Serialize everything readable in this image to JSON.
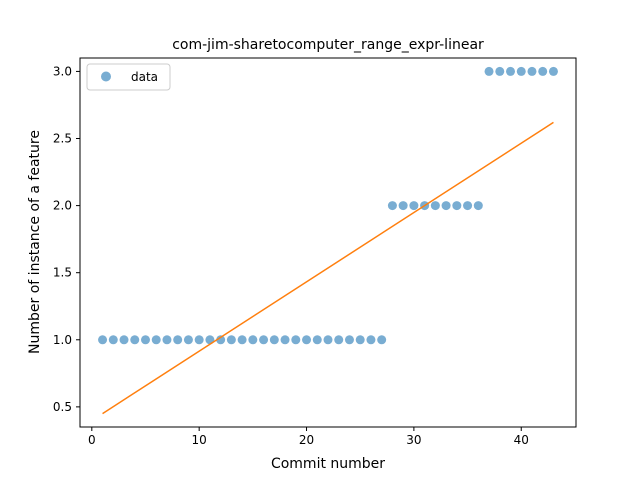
{
  "chart_data": {
    "type": "scatter",
    "title": "com-jim-sharetocomputer_range_expr-linear",
    "xlabel": "Commit number",
    "ylabel": "Number of instance of a feature",
    "xlim": [
      -1.1,
      45.1
    ],
    "ylim": [
      0.35,
      3.1
    ],
    "xticks": [
      0,
      10,
      20,
      30,
      40
    ],
    "xtick_labels": [
      "0",
      "10",
      "20",
      "30",
      "40"
    ],
    "yticks": [
      0.5,
      1.0,
      1.5,
      2.0,
      2.5,
      3.0
    ],
    "ytick_labels": [
      "0.5",
      "1.0",
      "1.5",
      "2.0",
      "2.5",
      "3.0"
    ],
    "grid": false,
    "legend_position": "top-left",
    "series": [
      {
        "name": "data",
        "kind": "scatter",
        "color": "#1f77b4",
        "x": [
          1,
          2,
          3,
          4,
          5,
          6,
          7,
          8,
          9,
          10,
          11,
          12,
          13,
          14,
          15,
          16,
          17,
          18,
          19,
          20,
          21,
          22,
          23,
          24,
          25,
          26,
          27,
          28,
          29,
          30,
          31,
          32,
          33,
          34,
          35,
          36,
          37,
          38,
          39,
          40,
          41,
          42,
          43
        ],
        "y": [
          1,
          1,
          1,
          1,
          1,
          1,
          1,
          1,
          1,
          1,
          1,
          1,
          1,
          1,
          1,
          1,
          1,
          1,
          1,
          1,
          1,
          1,
          1,
          1,
          1,
          1,
          1,
          2,
          2,
          2,
          2,
          2,
          2,
          2,
          2,
          2,
          3,
          3,
          3,
          3,
          3,
          3,
          3
        ]
      },
      {
        "kind": "line",
        "color": "#ff7f0e",
        "x": [
          1,
          43
        ],
        "y": [
          0.45,
          2.62
        ]
      }
    ]
  }
}
